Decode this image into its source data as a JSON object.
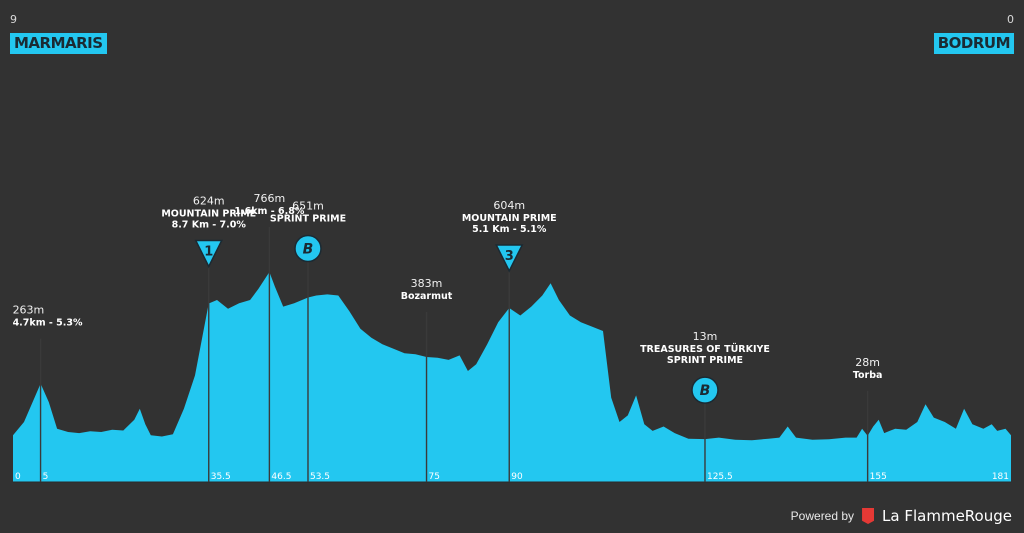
{
  "header": {
    "start": {
      "city": "MARMARIS",
      "num": "9"
    },
    "finish": {
      "city": "BODRUM",
      "num": "0"
    }
  },
  "footer": {
    "powered": "Powered by",
    "brand": "La FlammeRouge"
  },
  "colors": {
    "profile": "#23c7f0",
    "background": "#323232",
    "marker_fill": "#23c7f0",
    "brand_red": "#e53935"
  },
  "chart_data": {
    "type": "area",
    "x_range": [
      0,
      181
    ],
    "x_ticks": [
      "0",
      "5",
      "35.5",
      "46.5",
      "53.5",
      "75",
      "90",
      "125.5",
      "155",
      "181"
    ],
    "y_unit": "m",
    "profile": [
      [
        0,
        30
      ],
      [
        2,
        90
      ],
      [
        5,
        263
      ],
      [
        6.5,
        180
      ],
      [
        8,
        60
      ],
      [
        10,
        45
      ],
      [
        12,
        40
      ],
      [
        14,
        48
      ],
      [
        16,
        45
      ],
      [
        18,
        55
      ],
      [
        20,
        52
      ],
      [
        22,
        100
      ],
      [
        23,
        150
      ],
      [
        24,
        80
      ],
      [
        25,
        30
      ],
      [
        27,
        25
      ],
      [
        29,
        35
      ],
      [
        31,
        150
      ],
      [
        33,
        300
      ],
      [
        35.5,
        624
      ],
      [
        37,
        640
      ],
      [
        39,
        600
      ],
      [
        41,
        625
      ],
      [
        43,
        640
      ],
      [
        44.5,
        690
      ],
      [
        46.5,
        766
      ],
      [
        47.5,
        700
      ],
      [
        49,
        610
      ],
      [
        51,
        625
      ],
      [
        53.5,
        651
      ],
      [
        55,
        660
      ],
      [
        57,
        665
      ],
      [
        59,
        660
      ],
      [
        61,
        590
      ],
      [
        63,
        510
      ],
      [
        65,
        470
      ],
      [
        67,
        440
      ],
      [
        69,
        420
      ],
      [
        71,
        400
      ],
      [
        73,
        395
      ],
      [
        75,
        383
      ],
      [
        77,
        380
      ],
      [
        79,
        370
      ],
      [
        81,
        390
      ],
      [
        82.5,
        320
      ],
      [
        84,
        350
      ],
      [
        86,
        440
      ],
      [
        88,
        540
      ],
      [
        90,
        604
      ],
      [
        92,
        570
      ],
      [
        94,
        610
      ],
      [
        96,
        660
      ],
      [
        97.5,
        715
      ],
      [
        99,
        640
      ],
      [
        101,
        570
      ],
      [
        103,
        540
      ],
      [
        105,
        520
      ],
      [
        107,
        500
      ],
      [
        108.5,
        200
      ],
      [
        110,
        90
      ],
      [
        111.5,
        120
      ],
      [
        113,
        210
      ],
      [
        114.5,
        80
      ],
      [
        116,
        50
      ],
      [
        118,
        70
      ],
      [
        120,
        40
      ],
      [
        122.5,
        15
      ],
      [
        125.5,
        13
      ],
      [
        128,
        20
      ],
      [
        131,
        10
      ],
      [
        134,
        8
      ],
      [
        137,
        15
      ],
      [
        139,
        20
      ],
      [
        140.5,
        70
      ],
      [
        142,
        20
      ],
      [
        145,
        10
      ],
      [
        148,
        12
      ],
      [
        151,
        20
      ],
      [
        153,
        20
      ],
      [
        154,
        60
      ],
      [
        155,
        28
      ],
      [
        156,
        70
      ],
      [
        157,
        100
      ],
      [
        158,
        40
      ],
      [
        160,
        60
      ],
      [
        162,
        55
      ],
      [
        164,
        90
      ],
      [
        165.5,
        170
      ],
      [
        167,
        110
      ],
      [
        169,
        90
      ],
      [
        171,
        60
      ],
      [
        172.5,
        150
      ],
      [
        174,
        80
      ],
      [
        176,
        60
      ],
      [
        177.5,
        80
      ],
      [
        178.5,
        50
      ],
      [
        180,
        60
      ],
      [
        181,
        30
      ]
    ],
    "markers": [
      {
        "km": 5,
        "alt": 263,
        "alt_label": "263m",
        "lines": [
          "4.7km - 5.3%"
        ]
      },
      {
        "km": 35.5,
        "alt": 624,
        "alt_label": "624m",
        "lines": [
          "MOUNTAIN PRIME",
          "8.7 Km - 7.0%"
        ],
        "badge": "triangle",
        "badge_text": "1"
      },
      {
        "km": 46.5,
        "alt": 766,
        "alt_label": "766m",
        "lines": [
          "1.6km - 6.8%"
        ]
      },
      {
        "km": 53.5,
        "alt": 651,
        "alt_label": "651m",
        "lines": [
          "SPRINT PRIME"
        ],
        "badge": "circle",
        "badge_text": "B"
      },
      {
        "km": 75,
        "alt": 383,
        "alt_label": "383m",
        "lines": [
          "Bozarmut"
        ]
      },
      {
        "km": 90,
        "alt": 604,
        "alt_label": "604m",
        "lines": [
          "MOUNTAIN PRIME",
          "5.1 Km - 5.1%"
        ],
        "badge": "triangle",
        "badge_text": "3"
      },
      {
        "km": 125.5,
        "alt": 13,
        "alt_label": "13m",
        "lines": [
          "TREASURES OF TÜRKIYE",
          "SPRINT PRIME"
        ],
        "badge": "circle",
        "badge_text": "B"
      },
      {
        "km": 155,
        "alt": 28,
        "alt_label": "28m",
        "lines": [
          "Torba"
        ]
      }
    ]
  }
}
